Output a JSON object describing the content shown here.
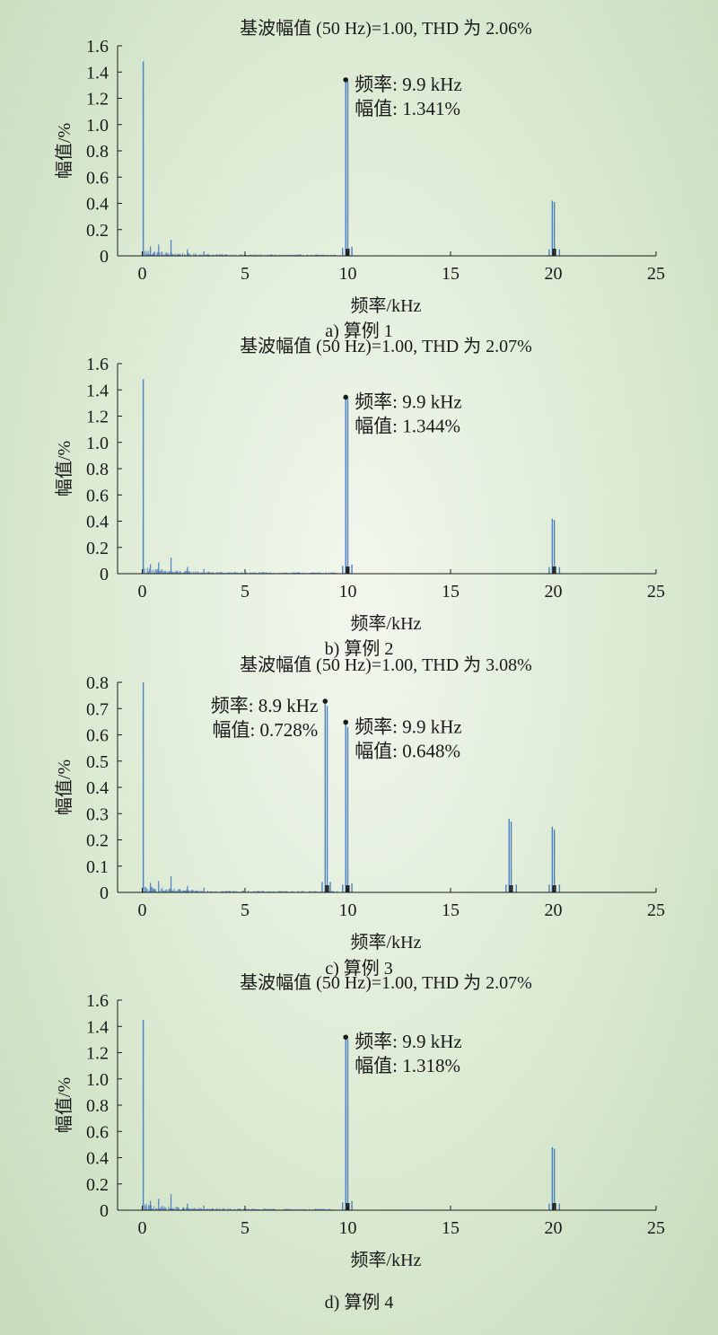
{
  "chart_data": [
    {
      "type": "bar",
      "title": "基波幅值 (50 Hz)=1.00, THD 为 2.06%",
      "xlabel": "频率/kHz",
      "ylabel": "幅值/%",
      "caption": "a) 算例 1",
      "xlim": [
        -1.2,
        25
      ],
      "ylim": [
        0,
        1.6
      ],
      "xticks": [
        0,
        5,
        10,
        15,
        20,
        25
      ],
      "yticks": [
        0,
        0.2,
        0.4,
        0.6,
        0.8,
        1.0,
        1.2,
        1.4,
        1.6
      ],
      "ytick_labels": [
        "0",
        "0.2",
        "0.4",
        "0.6",
        "0.8",
        "1.0",
        "1.2",
        "1.4",
        "1.6"
      ],
      "grid": false,
      "bars": [
        [
          0.05,
          1.48
        ],
        [
          9.9,
          1.341
        ],
        [
          10.0,
          1.33
        ],
        [
          9.75,
          0.06
        ],
        [
          10.2,
          0.07
        ],
        [
          19.95,
          0.42
        ],
        [
          20.05,
          0.41
        ],
        [
          19.8,
          0.05
        ],
        [
          20.3,
          0.05
        ]
      ],
      "annotations": [
        {
          "x": 9.9,
          "y": 1.341,
          "lines": [
            "频率: 9.9 kHz",
            "幅值: 1.341%"
          ]
        }
      ]
    },
    {
      "type": "bar",
      "title": "基波幅值 (50 Hz)=1.00, THD 为 2.07%",
      "xlabel": "频率/kHz",
      "ylabel": "幅值/%",
      "caption": "b) 算例 2",
      "xlim": [
        -1.2,
        25
      ],
      "ylim": [
        0,
        1.6
      ],
      "xticks": [
        0,
        5,
        10,
        15,
        20,
        25
      ],
      "yticks": [
        0,
        0.2,
        0.4,
        0.6,
        0.8,
        1.0,
        1.2,
        1.4,
        1.6
      ],
      "ytick_labels": [
        "0",
        "0.2",
        "0.4",
        "0.6",
        "0.8",
        "1.0",
        "1.2",
        "1.4",
        "1.6"
      ],
      "grid": false,
      "bars": [
        [
          0.05,
          1.48
        ],
        [
          9.9,
          1.344
        ],
        [
          10.0,
          1.33
        ],
        [
          9.75,
          0.06
        ],
        [
          10.2,
          0.07
        ],
        [
          19.95,
          0.42
        ],
        [
          20.05,
          0.41
        ],
        [
          19.8,
          0.05
        ],
        [
          20.3,
          0.05
        ]
      ],
      "annotations": [
        {
          "x": 9.9,
          "y": 1.344,
          "lines": [
            "频率: 9.9 kHz",
            "幅值: 1.344%"
          ]
        }
      ]
    },
    {
      "type": "bar",
      "title": "基波幅值 (50 Hz)=1.00, THD 为 3.08%",
      "xlabel": "频率/kHz",
      "ylabel": "幅值/%",
      "caption": "c) 算例 3",
      "xlim": [
        -1.2,
        25
      ],
      "ylim": [
        0,
        0.8
      ],
      "xticks": [
        0,
        5,
        10,
        15,
        20,
        25
      ],
      "yticks": [
        0,
        0.1,
        0.2,
        0.3,
        0.4,
        0.5,
        0.6,
        0.7,
        0.8
      ],
      "ytick_labels": [
        "0",
        "0.1",
        "0.2",
        "0.3",
        "0.4",
        "0.5",
        "0.6",
        "0.7",
        "0.8"
      ],
      "grid": false,
      "bars": [
        [
          0.05,
          0.8
        ],
        [
          8.9,
          0.728
        ],
        [
          9.0,
          0.71
        ],
        [
          8.75,
          0.04
        ],
        [
          9.15,
          0.04
        ],
        [
          9.9,
          0.648
        ],
        [
          10.0,
          0.63
        ],
        [
          9.75,
          0.03
        ],
        [
          10.2,
          0.035
        ],
        [
          17.85,
          0.28
        ],
        [
          17.95,
          0.27
        ],
        [
          17.7,
          0.03
        ],
        [
          18.2,
          0.03
        ],
        [
          19.95,
          0.25
        ],
        [
          20.05,
          0.24
        ],
        [
          19.8,
          0.03
        ],
        [
          20.3,
          0.03
        ]
      ],
      "annotations": [
        {
          "x": 8.9,
          "y": 0.728,
          "lines": [
            "频率: 8.9 kHz",
            "幅值: 0.728%"
          ],
          "side": "left"
        },
        {
          "x": 9.9,
          "y": 0.648,
          "lines": [
            "频率: 9.9 kHz",
            "幅值: 0.648%"
          ],
          "side": "right"
        }
      ]
    },
    {
      "type": "bar",
      "title": "基波幅值 (50 Hz)=1.00, THD 为 2.07%",
      "xlabel": "频率/kHz",
      "ylabel": "幅值/%",
      "caption": "d) 算例 4",
      "xlim": [
        -1.2,
        25
      ],
      "ylim": [
        0,
        1.6
      ],
      "xticks": [
        0,
        5,
        10,
        15,
        20,
        25
      ],
      "yticks": [
        0,
        0.2,
        0.4,
        0.6,
        0.8,
        1.0,
        1.2,
        1.4,
        1.6
      ],
      "ytick_labels": [
        "0",
        "0.2",
        "0.4",
        "0.6",
        "0.8",
        "1.0",
        "1.2",
        "1.4",
        "1.6"
      ],
      "grid": false,
      "bars": [
        [
          0.05,
          1.45
        ],
        [
          9.9,
          1.318
        ],
        [
          10.0,
          1.3
        ],
        [
          9.75,
          0.06
        ],
        [
          10.2,
          0.07
        ],
        [
          19.95,
          0.48
        ],
        [
          20.05,
          0.47
        ],
        [
          19.8,
          0.05
        ],
        [
          20.3,
          0.05
        ]
      ],
      "annotations": [
        {
          "x": 9.9,
          "y": 1.318,
          "lines": [
            "频率: 9.9 kHz",
            "幅值: 1.318%"
          ]
        }
      ]
    }
  ],
  "colors": {
    "bar": "#4f7fc0",
    "axis": "#1a1a1a",
    "marker": "#1a1a1a"
  }
}
